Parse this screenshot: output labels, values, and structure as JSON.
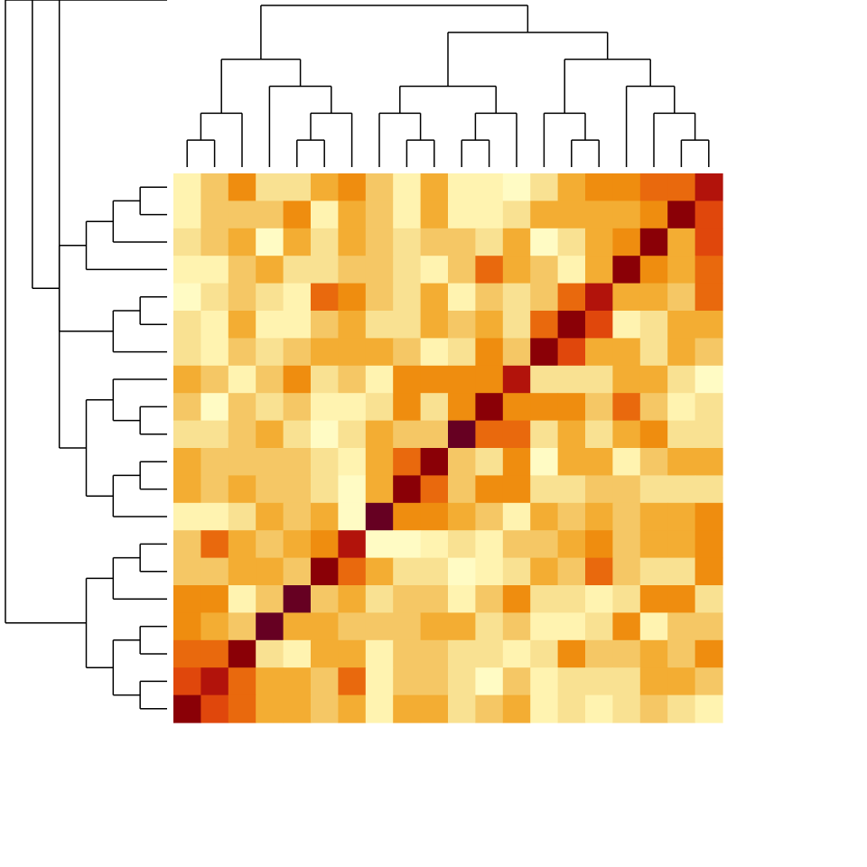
{
  "chart_data": {
    "type": "heatmap",
    "title": "",
    "xlabel": "",
    "ylabel": "",
    "rows": 20,
    "cols": 20,
    "legend": "none",
    "grid": false,
    "dendrogram_top": true,
    "dendrogram_left": true,
    "value_range": [
      0,
      8
    ],
    "palette": [
      "#fffbc4",
      "#fff3b0",
      "#f9e192",
      "#f5c765",
      "#f3ad33",
      "#ef8d0f",
      "#e9690d",
      "#e0470c",
      "#b2130b",
      "#8a0006",
      "#660022"
    ],
    "values": [
      [
        1,
        3,
        5,
        2,
        2,
        4,
        5,
        3,
        1,
        4,
        1,
        1,
        0,
        2,
        4,
        5,
        5,
        6,
        6,
        8
      ],
      [
        1,
        3,
        3,
        3,
        5,
        1,
        4,
        3,
        1,
        4,
        1,
        1,
        2,
        4,
        4,
        4,
        4,
        5,
        9,
        7
      ],
      [
        2,
        3,
        4,
        0,
        4,
        2,
        4,
        3,
        2,
        3,
        3,
        2,
        4,
        0,
        2,
        4,
        5,
        9,
        4,
        7
      ],
      [
        1,
        1,
        3,
        4,
        2,
        2,
        3,
        3,
        2,
        1,
        3,
        6,
        4,
        3,
        1,
        4,
        9,
        5,
        4,
        6
      ],
      [
        0,
        2,
        3,
        2,
        1,
        6,
        5,
        3,
        2,
        4,
        1,
        3,
        2,
        3,
        6,
        8,
        4,
        4,
        3,
        6
      ],
      [
        2,
        1,
        4,
        1,
        1,
        3,
        4,
        2,
        2,
        4,
        3,
        4,
        2,
        6,
        9,
        7,
        1,
        2,
        4,
        4
      ],
      [
        2,
        1,
        3,
        2,
        3,
        4,
        4,
        4,
        3,
        1,
        2,
        5,
        3,
        9,
        7,
        4,
        4,
        2,
        4,
        3
      ],
      [
        4,
        3,
        1,
        3,
        5,
        2,
        3,
        1,
        5,
        5,
        5,
        5,
        8,
        2,
        2,
        2,
        4,
        4,
        2,
        0
      ],
      [
        3,
        0,
        3,
        2,
        3,
        1,
        1,
        2,
        5,
        2,
        5,
        9,
        5,
        5,
        5,
        3,
        6,
        3,
        1,
        2
      ],
      [
        2,
        2,
        3,
        4,
        2,
        0,
        2,
        4,
        3,
        3,
        10,
        6,
        6,
        2,
        4,
        2,
        4,
        5,
        2,
        2
      ],
      [
        4,
        3,
        3,
        3,
        3,
        2,
        1,
        4,
        6,
        9,
        3,
        2,
        5,
        0,
        4,
        4,
        1,
        3,
        4,
        4
      ],
      [
        4,
        3,
        4,
        3,
        3,
        2,
        0,
        4,
        9,
        6,
        3,
        5,
        5,
        2,
        2,
        3,
        3,
        2,
        2,
        2
      ],
      [
        1,
        1,
        2,
        4,
        3,
        4,
        0,
        10,
        5,
        5,
        4,
        3,
        1,
        4,
        3,
        4,
        3,
        4,
        4,
        5
      ],
      [
        3,
        6,
        4,
        3,
        4,
        5,
        8,
        0,
        0,
        1,
        2,
        1,
        3,
        3,
        4,
        5,
        3,
        4,
        4,
        5
      ],
      [
        3,
        3,
        4,
        4,
        3,
        9,
        6,
        4,
        2,
        2,
        0,
        1,
        2,
        4,
        3,
        6,
        3,
        2,
        2,
        5
      ],
      [
        5,
        5,
        1,
        3,
        10,
        3,
        4,
        2,
        3,
        3,
        1,
        3,
        5,
        2,
        2,
        1,
        2,
        5,
        5,
        2
      ],
      [
        5,
        4,
        3,
        10,
        4,
        4,
        3,
        3,
        3,
        4,
        4,
        2,
        3,
        1,
        1,
        2,
        5,
        1,
        3,
        3
      ],
      [
        6,
        6,
        9,
        2,
        1,
        4,
        4,
        1,
        3,
        3,
        2,
        2,
        1,
        2,
        5,
        3,
        3,
        4,
        3,
        5
      ],
      [
        7,
        8,
        6,
        4,
        4,
        3,
        6,
        1,
        3,
        3,
        2,
        0,
        3,
        1,
        2,
        2,
        2,
        4,
        4,
        3
      ],
      [
        9,
        7,
        6,
        4,
        4,
        3,
        4,
        1,
        4,
        4,
        2,
        3,
        4,
        1,
        2,
        1,
        2,
        3,
        2,
        1
      ]
    ],
    "col_tree": [
      [
        [
          [
            0,
            1
          ],
          2
        ],
        [
          3,
          [
            [
              4,
              5
            ],
            6
          ]
        ]
      ],
      [
        [
          [
            7,
            [
              8,
              9
            ]
          ],
          [
            [
              10,
              11
            ],
            12
          ]
        ],
        [
          [
            13,
            [
              14,
              15
            ]
          ],
          [
            16,
            [
              17,
              [
                18,
                19
              ]
            ]
          ]
        ]
      ]
    ],
    "row_tree": [
      [
        [
          [
            [
              [
                0,
                1
              ],
              2
            ],
            3
          ],
          [
            [
              4,
              5
            ],
            6
          ]
        ],
        [
          [
            [
              7,
              [
                8,
                9
              ]
            ],
            [
              [
                10,
                11
              ],
              12
            ]
          ]
        ]
      ],
      [
        [
          [
            13,
            14
          ],
          15
        ],
        [
          [
            16,
            17
          ],
          [
            18,
            19
          ]
        ]
      ]
    ]
  }
}
